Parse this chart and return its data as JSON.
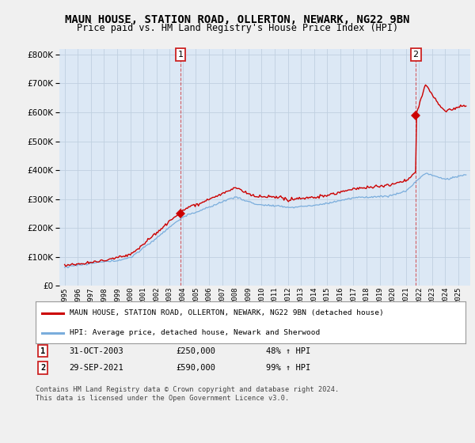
{
  "title": "MAUN HOUSE, STATION ROAD, OLLERTON, NEWARK, NG22 9BN",
  "subtitle": "Price paid vs. HM Land Registry's House Price Index (HPI)",
  "title_fontsize": 10,
  "subtitle_fontsize": 8.5,
  "bg_color": "#f0f0f0",
  "plot_bg_color": "#dce8f5",
  "sale1_year": 2003.83,
  "sale1_price": 250000,
  "sale2_year": 2021.75,
  "sale2_price": 590000,
  "legend_line1": "MAUN HOUSE, STATION ROAD, OLLERTON, NEWARK, NG22 9BN (detached house)",
  "legend_line2": "HPI: Average price, detached house, Newark and Sherwood",
  "table_row1": [
    "1",
    "31-OCT-2003",
    "£250,000",
    "48% ↑ HPI"
  ],
  "table_row2": [
    "2",
    "29-SEP-2021",
    "£590,000",
    "99% ↑ HPI"
  ],
  "footnote": "Contains HM Land Registry data © Crown copyright and database right 2024.\nThis data is licensed under the Open Government Licence v3.0.",
  "red_color": "#cc0000",
  "blue_color": "#7aaddc",
  "grid_color": "#c0d0e0",
  "ylim": [
    0,
    820000
  ],
  "yticks": [
    0,
    100000,
    200000,
    300000,
    400000,
    500000,
    600000,
    700000,
    800000
  ],
  "start_year": 1995,
  "end_year": 2025
}
